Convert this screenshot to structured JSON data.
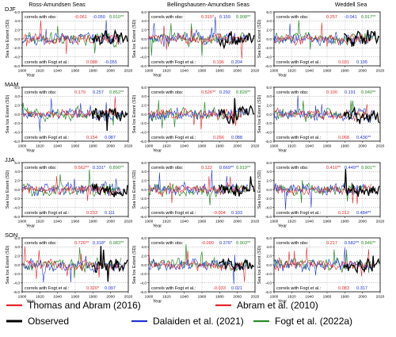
{
  "figure": {
    "column_titles": [
      "Ross-Amundsen Seas",
      "Bellingshausen-Amundsen Seas",
      "Weddell Sea"
    ],
    "row_labels": [
      "DJF",
      "MAM",
      "JJA",
      "SON"
    ],
    "ylabel": "Sea Ice Extent (SD)",
    "xlabel": "Year",
    "obs_label": "correls with obs:",
    "fogt_label": "correls with Fogt et al.:",
    "x_ticks": [
      "1900",
      "1920",
      "1940",
      "1960",
      "1980",
      "2000",
      "2020"
    ],
    "y_ticks": [
      "6.0",
      "4.0",
      "2.0",
      "0.0",
      "-2.0",
      "-4.0",
      "-6.0"
    ],
    "legend": [
      {
        "label": "Thomas and Abram (2016)",
        "color": "#e8262a"
      },
      {
        "label": "Abram et al. (2010)",
        "color": "#e8262a"
      },
      {
        "label": "Observed",
        "color": "#000000"
      },
      {
        "label": "Dalaiden et al. (2021)",
        "color": "#1f35d6"
      },
      {
        "label": "Fogt et al. (2022a)",
        "color": "#2a8a2a"
      }
    ],
    "colors": {
      "red": "#e8262a",
      "blue": "#1f35d6",
      "green": "#2a8a2a",
      "black": "#000000"
    }
  },
  "chart_data": {
    "type": "line",
    "xlim": [
      1900,
      2020
    ],
    "ylim": [
      -6,
      6
    ],
    "panels": [
      {
        "season": "DJF",
        "region": "Ross-Amundsen Seas",
        "obs_corr": [
          "-0.061",
          "-0.050",
          "0.910**"
        ],
        "fogt_corr": [
          "0.088",
          "-0.055"
        ]
      },
      {
        "season": "DJF",
        "region": "Bellingshausen-Amundsen Seas",
        "obs_corr": [
          "0.315*",
          "0.159",
          "0.908**"
        ],
        "fogt_corr": [
          "0.196",
          "0.204"
        ]
      },
      {
        "season": "DJF",
        "region": "Weddell Sea",
        "obs_corr": [
          "0.257",
          "-0.041",
          "0.917**"
        ],
        "fogt_corr": [
          "0.031",
          "0.195"
        ]
      },
      {
        "season": "MAM",
        "region": "Ross-Amundsen Seas",
        "obs_corr": [
          "0.179",
          "0.257",
          "0.852**"
        ],
        "fogt_corr": [
          "0.154",
          "0.087"
        ]
      },
      {
        "season": "MAM",
        "region": "Bellingshausen-Amundsen Seas",
        "obs_corr": [
          "0.526**",
          "0.292",
          "0.828**"
        ],
        "fogt_corr": [
          "0.266",
          "0.088"
        ]
      },
      {
        "season": "MAM",
        "region": "Weddell Sea",
        "obs_corr": [
          "0.100",
          "0.191",
          "0.940**"
        ],
        "fogt_corr": [
          "0.068",
          "0.436**"
        ]
      },
      {
        "season": "JJA",
        "region": "Ross-Amundsen Seas",
        "obs_corr": [
          "0.562**",
          "0.331*",
          "0.890**"
        ],
        "fogt_corr": [
          "0.233",
          "0.111"
        ]
      },
      {
        "season": "JJA",
        "region": "Bellingshausen-Amundsen Seas",
        "obs_corr": [
          "0.122",
          "0.669**",
          "0.919**"
        ],
        "fogt_corr": [
          "-0.004",
          "0.103"
        ]
      },
      {
        "season": "JJA",
        "region": "Weddell Sea",
        "obs_corr": [
          "0.410**",
          "0.449**",
          "0.901**"
        ],
        "fogt_corr": [
          "0.212",
          "0.484**"
        ]
      },
      {
        "season": "SON",
        "region": "Ross-Amundsen Seas",
        "obs_corr": [
          "0.726**",
          "0.318*",
          "0.983**"
        ],
        "fogt_corr": [
          "0.320*",
          "0.097"
        ]
      },
      {
        "season": "SON",
        "region": "Bellingshausen-Amundsen Seas",
        "obs_corr": [
          "-0.090",
          "0.376*",
          "0.903**"
        ],
        "fogt_corr": [
          "-0.033",
          "0.021"
        ]
      },
      {
        "season": "SON",
        "region": "Weddell Sea",
        "obs_corr": [
          "0.217",
          "0.582**",
          "0.946**"
        ],
        "fogt_corr": [
          "0.083",
          "0.317"
        ]
      }
    ]
  }
}
